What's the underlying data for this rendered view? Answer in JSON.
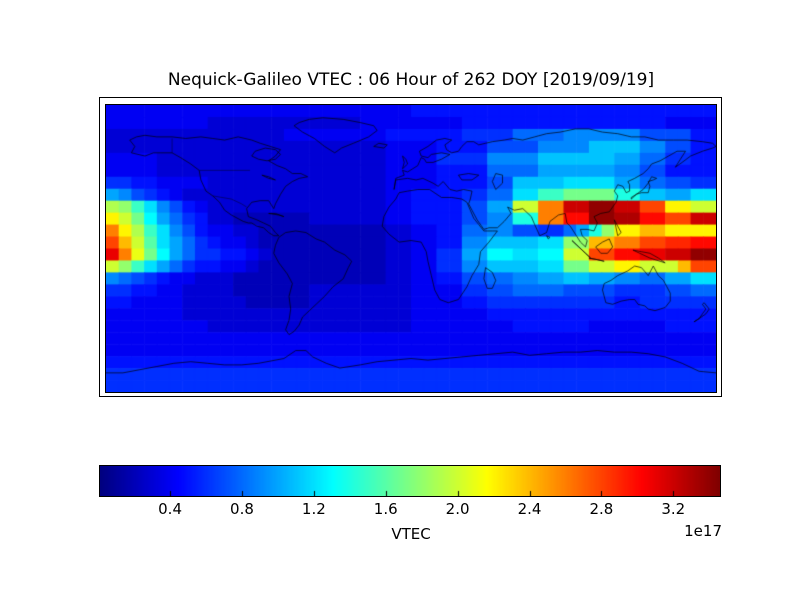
{
  "title": "Nequick-Galileo VTEC : 06 Hour of 262 DOY [2019/09/19]",
  "colorbar": {
    "label": "VTEC",
    "scale_note": "1e17",
    "ticks": [
      "0.4",
      "0.8",
      "1.2",
      "1.6",
      "2.0",
      "2.4",
      "2.8",
      "3.2"
    ],
    "tick_values": [
      0.4,
      0.8,
      1.2,
      1.6,
      2.0,
      2.4,
      2.8,
      3.2
    ],
    "vmin": 0.01,
    "vmax": 3.46,
    "colormap": "jet"
  },
  "chart_data": {
    "type": "heatmap",
    "title": "Nequick-Galileo VTEC : 06 Hour of 262 DOY [2019/09/19]",
    "colorbar_label": "VTEC",
    "scale_factor_label": "1e17",
    "colormap": "jet",
    "vmin": 0.01,
    "vmax": 3.46,
    "colorbar_ticks": [
      0.4,
      0.8,
      1.2,
      1.6,
      2.0,
      2.4,
      2.8,
      3.2
    ],
    "x_range_deg_lon": [
      -180,
      180
    ],
    "y_range_deg_lat": [
      -90,
      90
    ],
    "grid": {
      "cols": 48,
      "rows": 24,
      "cell_deg": 7.5,
      "row_order": "north-to-south",
      "col_order": "west-to-east (lon -180 to +180)",
      "value_encoding": "each base36 digit = VTEC in units of 0.1e17 (e.g. 'y'=34 -> 3.4e17)",
      "rows_base36": [
        "444444444444444444444444555555555555555555555555",
        "444444443333333333334444444455555555555555554444",
        "333333333333334444444455555566668888999999777755",
        "33333333333333333333334444555577779999bbbb997755",
        "4444333333333333333333444466669999bbbbbbaa886655",
        "4444333333333333333333444455558888aaaaaa99775555",
        "66554444333333333333334444555577bbbbccccaa887766",
        "a9765433333333333333334455556688ccffhhhheebbaacc",
        "jifc97543333333333333344555577aakkqqwwyywwssmmkk",
        "mkhda865332222223333334455557799eeqquuyyxxuussww",
        "qmjfc97544332222222222334455889977668aeimmoommmm",
        "sokgca865443222222222233445599bbbbcciiooqqssttuu",
        "vqlhda8665543222222222334466aaddccddkkssuuvvwwyy",
        "kifca8655443222222222233446699bbbbcchhkkmmkkkoss",
        "9876544333222222222222334455778899aabbaa9988aacc",
        "665544333322222233333333444466778888777766667788",
        "554444333332222233333333444455666666666655666666",
        "444444333333333333333333444444555555555555555555",
        "444444443333333333333333444444445555554444445555",
        "444444444444444444444444444444444444444444444444",
        "444444444444444444444444444444444444444444444444",
        "555555555555555555555555555555555555555555555555",
        "666666666666666666666666666666666666666666666666",
        "666666666666666666666666666666666666666666666666"
      ]
    }
  }
}
